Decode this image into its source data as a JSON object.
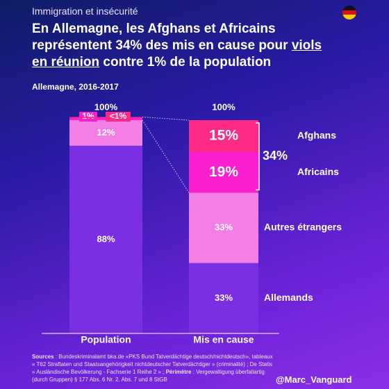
{
  "header": "Immigration et insécurité",
  "chart_data": {
    "type": "stacked-bar",
    "title_parts": [
      "En Allemagne, les Afghans et Africains représentent 34% des mis en cause pour ",
      "viols en réunion",
      " contre 1% de la population"
    ],
    "title_underline_index": 1,
    "subtitle": "Allemagne, 2016-2017",
    "categories": [
      "Population",
      "Mis en cause"
    ],
    "series": [
      {
        "name": "Allemands",
        "color": "#7b2fe3",
        "values": [
          88,
          33
        ],
        "value_labels": [
          "88%",
          "33%"
        ]
      },
      {
        "name": "Autres étrangers",
        "color": "#f27ee6",
        "values": [
          12,
          33
        ],
        "value_labels": [
          "12%",
          "33%"
        ]
      },
      {
        "name": "Africains",
        "color": "#fb1fd0",
        "values": [
          1,
          19
        ],
        "value_labels": [
          "1%",
          "19%"
        ]
      },
      {
        "name": "Afghans",
        "color": "#ff2a86",
        "values": [
          0.5,
          15
        ],
        "value_labels": [
          "<1%",
          "15%"
        ]
      }
    ],
    "totals": [
      100,
      100
    ],
    "total_labels": [
      "100%",
      "100%"
    ],
    "ylim": [
      0,
      100
    ],
    "annotation": {
      "value": 34,
      "label": "34%"
    }
  },
  "footer": {
    "sources": [
      {
        "text": "Sources",
        "bold": true
      },
      {
        "text": " : Bundeskriminalamt bka.de «PKS Bund Tatverdächtige deutsch/nichtdeutsch», tableaux « T62 Straftaten und Staatsangehörigkeit nichtdeutscher Tatverdächtiger » (criminalité) ; De Statis « Ausländische Bevölkerung - Fachserie 1 Reihe 2 » ; ",
        "bold": false
      },
      {
        "text": "Périmètre",
        "bold": true
      },
      {
        "text": " : Vergewaltigung überfallartig (durch Gruppen) § 177 Abs. 6 Nr. 2, Abs. 7 und 8 StGB",
        "bold": false
      }
    ],
    "credit": "@Marc_Vanguard"
  }
}
